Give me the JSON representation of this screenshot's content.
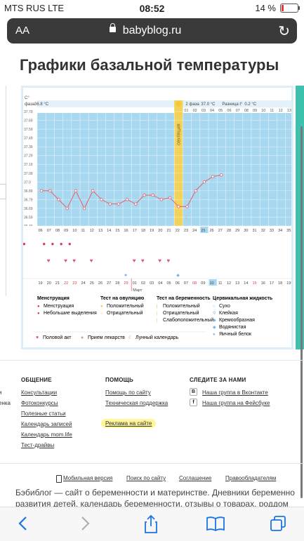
{
  "status_bar": {
    "carrier": "MTS RUS  LTE",
    "time": "08:52",
    "battery": "14 %"
  },
  "browser": {
    "text_size": "AA",
    "url": "babyblog.ru"
  },
  "page": {
    "title": "Графики базальной температуры"
  },
  "chart_data": {
    "type": "line",
    "y_unit": "C°",
    "y_ticks": [
      "37.79",
      "37.69",
      "37.59",
      "37.49",
      "37.39",
      "37.29",
      "37.19",
      "37.09",
      "37.0",
      "36.89",
      "36.79",
      "36.69",
      "36.59",
      "36.49"
    ],
    "phase1_label": "фаза",
    "phase1_temp": "36.8 °C",
    "phase2_label": "2 фаза",
    "phase2_temp": "37.0 °C",
    "diff_label": "Разница t°",
    "diff_value": "0.2 °C",
    "ovulation_label": "ОВУЛЯЦИЯ",
    "day_labels_top": [
      "01",
      "02",
      "03",
      "04",
      "05",
      "06",
      "07",
      "08",
      "09",
      "10",
      "11",
      "12",
      "13",
      "14"
    ],
    "cycle_days": [
      "06",
      "07",
      "08",
      "09",
      "10",
      "11",
      "12",
      "13",
      "14",
      "15",
      "16",
      "17",
      "18",
      "19",
      "20",
      "21",
      "22",
      "23",
      "24",
      "25",
      "26",
      "27",
      "28",
      "29",
      "30",
      "31",
      "32",
      "33",
      "34",
      "35",
      "36"
    ],
    "temperatures": [
      36.89,
      36.89,
      36.79,
      36.69,
      36.89,
      36.69,
      36.89,
      36.79,
      36.74,
      36.74,
      36.79,
      36.74,
      36.84,
      36.84,
      36.79,
      36.81,
      36.71,
      36.71,
      36.89,
      36.99,
      37.05,
      37.07
    ],
    "highlight_day": "25",
    "dates": [
      "19",
      "20",
      "21",
      "22",
      "23",
      "24",
      "25",
      "26",
      "27",
      "28",
      "29",
      "01",
      "02",
      "03",
      "04",
      "05",
      "06",
      "07",
      "08",
      "09",
      "10",
      "11",
      "12",
      "13",
      "14",
      "15",
      "16",
      "17",
      "18",
      "19",
      "20"
    ],
    "month_label": "Март",
    "colors": {
      "phase1": "#a8d8f0",
      "phase2": "#a8d8f0",
      "ovulation": "#f3d25a",
      "line": "#e0606e",
      "header": "#e3f1fa"
    }
  },
  "legend": {
    "menstruation": {
      "title": "Менструация",
      "items": [
        "Менструация",
        "Небольшие выделения"
      ]
    },
    "ovulation_test": {
      "title": "Тест на овуляцию",
      "items": [
        "Положительный",
        "Отрицательный"
      ]
    },
    "pregnancy_test": {
      "title": "Тест на беременность",
      "items": [
        "Положительный",
        "Отрицательный",
        "Слабоположительный"
      ]
    },
    "cervical": {
      "title": "Цервикальная жидкость",
      "items": [
        "Сухо",
        "Клейкая",
        "Кремообразная",
        "Водянистая",
        "Яичный белок"
      ]
    },
    "bottom": [
      "Половой акт",
      "Прием лекарств",
      "Лунный календарь"
    ]
  },
  "footer": {
    "general": {
      "title": "ОБЩЕНИЕ",
      "links": [
        "Консультации",
        "Фотоконкурсы",
        "Полезные статьи",
        "Календарь записей",
        "Календарь mom.life",
        "Тест-драйвы"
      ]
    },
    "help": {
      "title": "ПОМОЩЬ",
      "links": [
        "Помощь по сайту",
        "Техническая поддержка",
        "Реклама на сайте"
      ]
    },
    "follow": {
      "title": "СЛЕДИТЕ ЗА НАМИ",
      "links": [
        "Наша группа в Вконтакте",
        "Наша группа на Фейсбуке"
      ]
    },
    "left_cut": [
      "и",
      "енка"
    ],
    "bottom_links": [
      "Мобильная версия",
      "Поиск по сайту",
      "Соглашение",
      "Правообладателям"
    ],
    "about_line1": "Бэбиблог — сайт о беременности и материнстве. Дневники беременно",
    "about_line2": "развития детей, календарь беременности, отзывы о товарах, роддом"
  }
}
